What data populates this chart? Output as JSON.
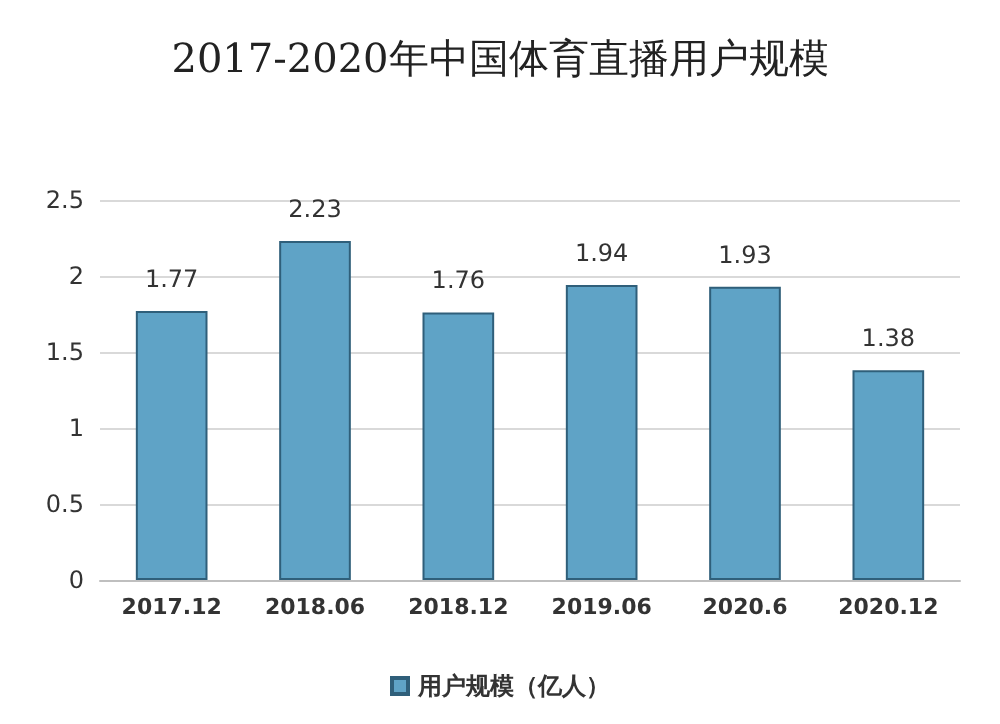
{
  "chart_data": {
    "type": "bar",
    "title": "2017-2020年中国体育直播用户规模",
    "categories": [
      "2017.12",
      "2018.06",
      "2018.12",
      "2019.06",
      "2020.6",
      "2020.12"
    ],
    "series": [
      {
        "name": "用户规模（亿人）",
        "color": "#5fa3c6",
        "values": [
          1.77,
          2.23,
          1.76,
          1.94,
          1.93,
          1.38
        ]
      }
    ],
    "ylim": [
      0,
      2.5
    ],
    "yticks": [
      0,
      0.5,
      1,
      1.5,
      2,
      2.5
    ],
    "grid": "y",
    "legend": "bottom",
    "data_labels": true
  }
}
